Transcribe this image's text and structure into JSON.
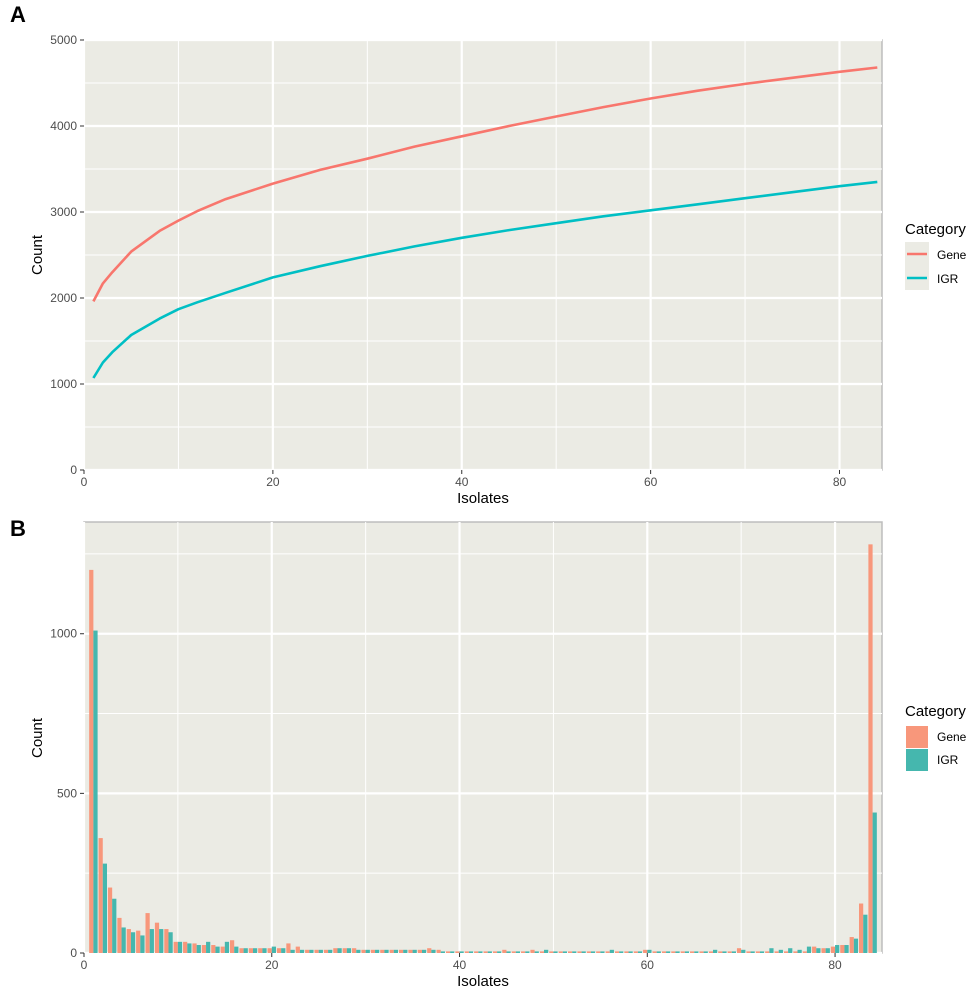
{
  "chart_data": [
    {
      "panel_label": "A",
      "type": "line",
      "xlabel": "Isolates",
      "ylabel": "Count",
      "xlim": [
        0,
        84.5
      ],
      "ylim": [
        0,
        5000
      ],
      "x_ticks": [
        0,
        20,
        40,
        60,
        80
      ],
      "y_ticks": [
        0,
        1000,
        2000,
        3000,
        4000,
        5000
      ],
      "grid": true,
      "legend": {
        "title": "Category",
        "position": "right",
        "entries": [
          "Gene",
          "IGR"
        ]
      },
      "series": [
        {
          "name": "Gene",
          "color": "#F8766D",
          "x": [
            1,
            2,
            3,
            5,
            8,
            10,
            12,
            15,
            20,
            25,
            30,
            35,
            40,
            45,
            50,
            55,
            60,
            65,
            70,
            75,
            80,
            84
          ],
          "y": [
            1960,
            2170,
            2300,
            2540,
            2780,
            2900,
            3010,
            3150,
            3330,
            3490,
            3620,
            3760,
            3880,
            4000,
            4110,
            4220,
            4320,
            4410,
            4490,
            4560,
            4630,
            4680
          ]
        },
        {
          "name": "IGR",
          "color": "#00BFC4",
          "x": [
            1,
            2,
            3,
            5,
            8,
            10,
            12,
            15,
            20,
            25,
            30,
            35,
            40,
            45,
            50,
            55,
            60,
            65,
            70,
            75,
            80,
            84
          ],
          "y": [
            1070,
            1250,
            1370,
            1570,
            1760,
            1870,
            1950,
            2060,
            2240,
            2370,
            2490,
            2600,
            2700,
            2790,
            2870,
            2950,
            3020,
            3090,
            3160,
            3230,
            3300,
            3350
          ]
        }
      ]
    },
    {
      "panel_label": "B",
      "type": "bar",
      "xlabel": "Isolates",
      "ylabel": "Count",
      "xlim": [
        0,
        85
      ],
      "ylim": [
        0,
        1350
      ],
      "x_ticks": [
        0,
        20,
        40,
        60,
        80
      ],
      "y_ticks": [
        0,
        500,
        1000
      ],
      "grid": true,
      "legend": {
        "title": "Category",
        "position": "right",
        "entries": [
          "Gene",
          "IGR"
        ]
      },
      "x": [
        1,
        2,
        3,
        4,
        5,
        6,
        7,
        8,
        9,
        10,
        11,
        12,
        13,
        14,
        15,
        16,
        17,
        18,
        19,
        20,
        21,
        22,
        23,
        24,
        25,
        26,
        27,
        28,
        29,
        30,
        31,
        32,
        33,
        34,
        35,
        36,
        37,
        38,
        39,
        40,
        41,
        42,
        43,
        44,
        45,
        46,
        47,
        48,
        49,
        50,
        51,
        52,
        53,
        54,
        55,
        56,
        57,
        58,
        59,
        60,
        61,
        62,
        63,
        64,
        65,
        66,
        67,
        68,
        69,
        70,
        71,
        72,
        73,
        74,
        75,
        76,
        77,
        78,
        79,
        80,
        81,
        82,
        83,
        84
      ],
      "series": [
        {
          "name": "Gene",
          "color": "#F8977B",
          "values": [
            1200,
            360,
            205,
            110,
            75,
            70,
            125,
            95,
            75,
            35,
            35,
            30,
            25,
            25,
            20,
            40,
            15,
            15,
            15,
            15,
            15,
            30,
            20,
            10,
            10,
            10,
            15,
            15,
            15,
            10,
            10,
            10,
            10,
            10,
            10,
            10,
            15,
            10,
            5,
            5,
            5,
            5,
            5,
            5,
            10,
            5,
            5,
            10,
            5,
            5,
            5,
            5,
            5,
            5,
            5,
            5,
            5,
            5,
            5,
            10,
            5,
            5,
            5,
            5,
            5,
            5,
            5,
            5,
            5,
            15,
            5,
            5,
            5,
            5,
            5,
            5,
            5,
            20,
            15,
            20,
            25,
            50,
            155,
            1280
          ]
        },
        {
          "name": "IGR",
          "color": "#45B7AE",
          "values": [
            1010,
            280,
            170,
            80,
            65,
            55,
            75,
            75,
            65,
            35,
            30,
            25,
            35,
            20,
            35,
            20,
            15,
            15,
            15,
            20,
            15,
            10,
            10,
            10,
            10,
            10,
            15,
            15,
            10,
            10,
            10,
            10,
            10,
            10,
            10,
            10,
            10,
            5,
            5,
            5,
            5,
            5,
            5,
            5,
            5,
            5,
            5,
            5,
            10,
            5,
            5,
            5,
            5,
            5,
            5,
            10,
            5,
            5,
            5,
            10,
            5,
            5,
            5,
            5,
            5,
            5,
            10,
            5,
            5,
            10,
            5,
            5,
            15,
            10,
            15,
            10,
            20,
            15,
            15,
            25,
            25,
            45,
            120,
            440
          ]
        }
      ]
    }
  ]
}
